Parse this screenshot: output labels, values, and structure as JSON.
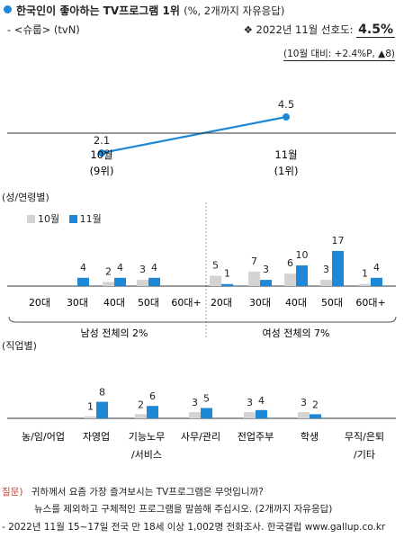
{
  "header": {
    "title": "한국인이 좋아하는 TV프로그램 1위",
    "title_note": "(%, 2개까지 자유응답)",
    "program": "- <슈룹> (tvN)",
    "pref_prefix": "❖ 2022년 11월 선호도:",
    "pref_value": "4.5%",
    "change": "(10월 대비: +2.4%P, ▲8)"
  },
  "colors": {
    "oct": "#D3D3D3",
    "nov": "#1E88D6",
    "accent": "#1E88D6",
    "question": "#D23A2C"
  },
  "chart_data": [
    {
      "type": "line",
      "categories": [
        "10월",
        "11월"
      ],
      "sublabels": [
        "(9위)",
        "(1위)"
      ],
      "values": [
        2.1,
        4.5
      ]
    },
    {
      "type": "bar",
      "title": "(성/연령별)",
      "legend": [
        "10월",
        "11월"
      ],
      "categories": [
        "20대",
        "30대",
        "40대",
        "50대",
        "60대+",
        "20대",
        "30대",
        "40대",
        "50대",
        "60대+"
      ],
      "groups": [
        {
          "label": "남성 전체의 2%",
          "range": [
            0,
            4
          ]
        },
        {
          "label": "여성 전체의 7%",
          "range": [
            5,
            9
          ]
        }
      ],
      "series": [
        {
          "name": "10월",
          "values": [
            0,
            0,
            2,
            3,
            0,
            5,
            7,
            6,
            3,
            1
          ],
          "labels": [
            "",
            "",
            "2",
            "3",
            "",
            "5",
            "7",
            "6",
            "3",
            "1"
          ]
        },
        {
          "name": "11월",
          "values": [
            0,
            4,
            4,
            4,
            0,
            1,
            3,
            10,
            17,
            4
          ],
          "labels": [
            "",
            "4",
            "4",
            "4",
            "",
            "1",
            "3",
            "10",
            "17",
            "4"
          ]
        }
      ]
    },
    {
      "type": "bar",
      "title": "(직업별)",
      "categories": [
        "농/임/어업",
        "자영업",
        "기능노무\n/서비스",
        "사무/관리",
        "전업주부",
        "학생",
        "무직/은퇴\n/기타"
      ],
      "series": [
        {
          "name": "10월",
          "values": [
            0,
            1,
            2,
            3,
            3,
            3,
            0
          ],
          "labels": [
            "",
            "1",
            "2",
            "3",
            "3",
            "3",
            ""
          ]
        },
        {
          "name": "11월",
          "values": [
            0,
            8,
            6,
            5,
            4,
            2,
            0
          ],
          "labels": [
            "",
            "8",
            "6",
            "5",
            "4",
            "2",
            ""
          ]
        }
      ]
    }
  ],
  "footer": {
    "q_label": "질문)",
    "q_line1": "귀하께서 요즘 가장 즐겨보시는 TV프로그램은 무엇입니까?",
    "q_line2": "뉴스를 제외하고 구체적인 프로그램을 말씀해 주십시오. (2개까지 자유응답)",
    "source": "- 2022년 11월 15~17일 전국 만 18세 이상 1,002명 전화조사. 한국갤럽 www.gallup.co.kr"
  }
}
